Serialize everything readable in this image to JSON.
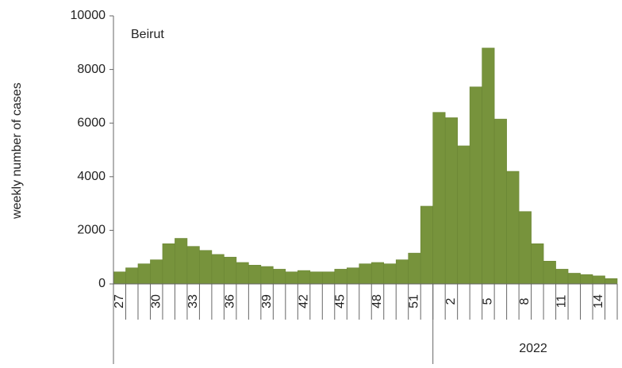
{
  "chart_data": {
    "type": "bar",
    "annotation": "Beirut",
    "y_label": "weekly number of cases",
    "group_label": "2022",
    "categories": [
      "27",
      null,
      null,
      "30",
      null,
      null,
      "33",
      null,
      null,
      "36",
      null,
      null,
      "39",
      null,
      null,
      "42",
      null,
      null,
      "45",
      null,
      null,
      "48",
      null,
      null,
      "51",
      null,
      null,
      "2",
      null,
      null,
      "5",
      null,
      null,
      "8",
      null,
      null,
      "11",
      null,
      null,
      "14",
      null
    ],
    "values": [
      450,
      600,
      750,
      900,
      1500,
      1700,
      1400,
      1250,
      1100,
      1000,
      800,
      700,
      650,
      550,
      450,
      500,
      450,
      450,
      550,
      600,
      750,
      800,
      750,
      900,
      1150,
      2900,
      6400,
      6200,
      5150,
      7350,
      8800,
      6150,
      4200,
      2700,
      1500,
      850,
      550,
      400,
      350,
      300,
      200
    ],
    "color": "#77933c",
    "ylim": [
      0,
      10000
    ],
    "yticks": [
      0,
      2000,
      4000,
      6000,
      8000,
      10000
    ]
  }
}
